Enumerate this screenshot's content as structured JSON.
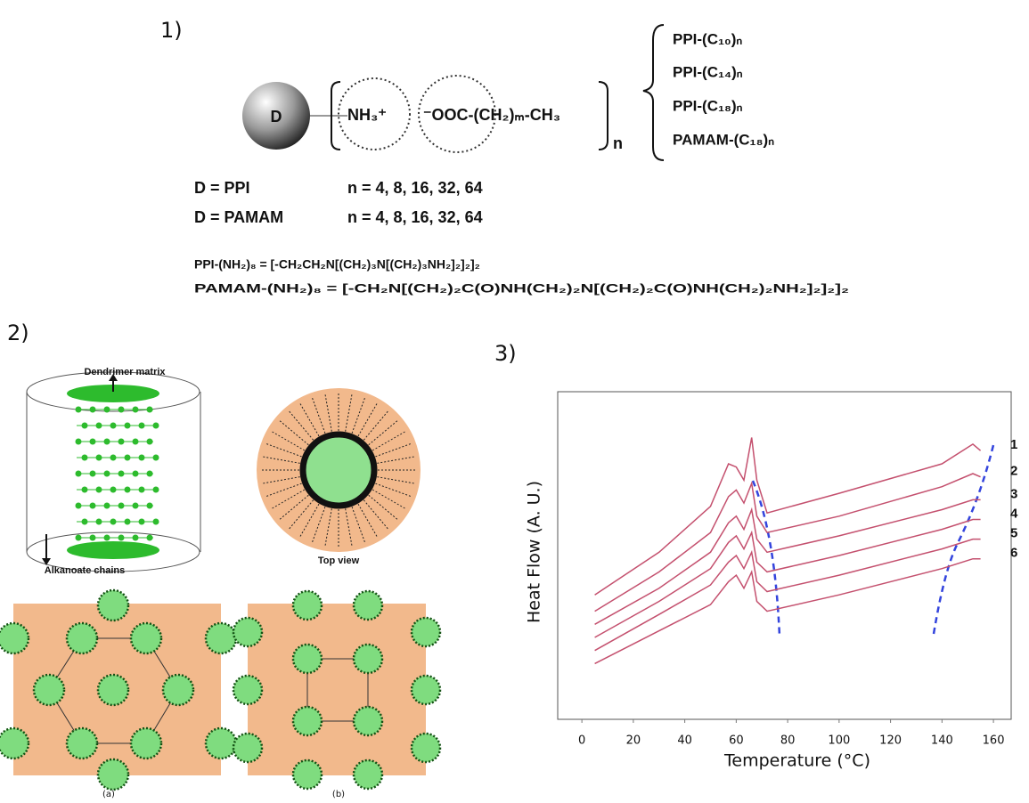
{
  "panel_labels": [
    "1)",
    "2)",
    "3)"
  ],
  "scheme": {
    "core": "D",
    "amine": "NH₃⁺",
    "acid": "⁻OOC-(CH₂)ₘ-CH₃",
    "repeat": "n",
    "products": [
      "PPI-(C₁₀)ₙ",
      "PPI-(C₁₄)ₙ",
      "PPI-(C₁₈)ₙ",
      "PAMAM-(C₁₈)ₙ"
    ],
    "definitions": [
      {
        "core": "D = PPI",
        "generations": "n = 4, 8, 16, 32, 64"
      },
      {
        "core": "D = PAMAM",
        "generations": "n = 4, 8, 16, 32, 64"
      }
    ],
    "formulas": [
      "PPI-(NH₂)₈ = [-CH₂CH₂N[(CH₂)₃N[(CH₂)₃NH₂]₂]₂]₂",
      "PAMAM-(NH₂)₈ = [-CH₂N[(CH₂)₂C(O)NH(CH₂)₂N[(CH₂)₂C(O)NH(CH₂)₂NH₂]₂]₂]₂"
    ]
  },
  "diagram": {
    "matrix": "Dendrimer matrix",
    "chains": "Alkanoate chains",
    "top": "Top view",
    "captions": [
      "(a)",
      "(b)"
    ]
  },
  "chart_data": {
    "type": "line",
    "x_label": "Temperature (°C)",
    "y_label": "Heat Flow (A. U.)",
    "x": [
      5,
      30,
      50,
      57,
      60,
      63,
      66,
      68,
      72,
      100,
      140,
      152,
      155
    ],
    "xlim": [
      -9.4,
      166.9
    ],
    "xticks": [
      0,
      20,
      40,
      60,
      80,
      100,
      120,
      140,
      160
    ],
    "ylim": [
      0,
      100
    ],
    "series": [
      {
        "name": "1",
        "color": "#c4506e",
        "values": [
          38,
          51,
          65,
          78,
          77,
          73,
          86,
          73,
          63,
          69,
          78,
          84,
          82
        ]
      },
      {
        "name": "2",
        "color": "#c4506e",
        "values": [
          33,
          45,
          57,
          68,
          70,
          66,
          72,
          62,
          57,
          62,
          71,
          75,
          74
        ]
      },
      {
        "name": "3",
        "color": "#c4506e",
        "values": [
          29,
          40,
          51,
          60,
          62,
          58,
          64,
          55,
          51,
          56,
          64,
          67,
          67
        ]
      },
      {
        "name": "4",
        "color": "#c4506e",
        "values": [
          25,
          36,
          46,
          54,
          56,
          52,
          57,
          48,
          45,
          50,
          58,
          61,
          61
        ]
      },
      {
        "name": "5",
        "color": "#c4506e",
        "values": [
          21,
          32,
          41,
          48,
          50,
          46,
          51,
          42,
          39,
          44,
          52,
          55,
          55
        ]
      },
      {
        "name": "6",
        "color": "#c4506e",
        "values": [
          17,
          27,
          35,
          42,
          44,
          40,
          45,
          36,
          33,
          38,
          46,
          49,
          49
        ]
      }
    ]
  }
}
